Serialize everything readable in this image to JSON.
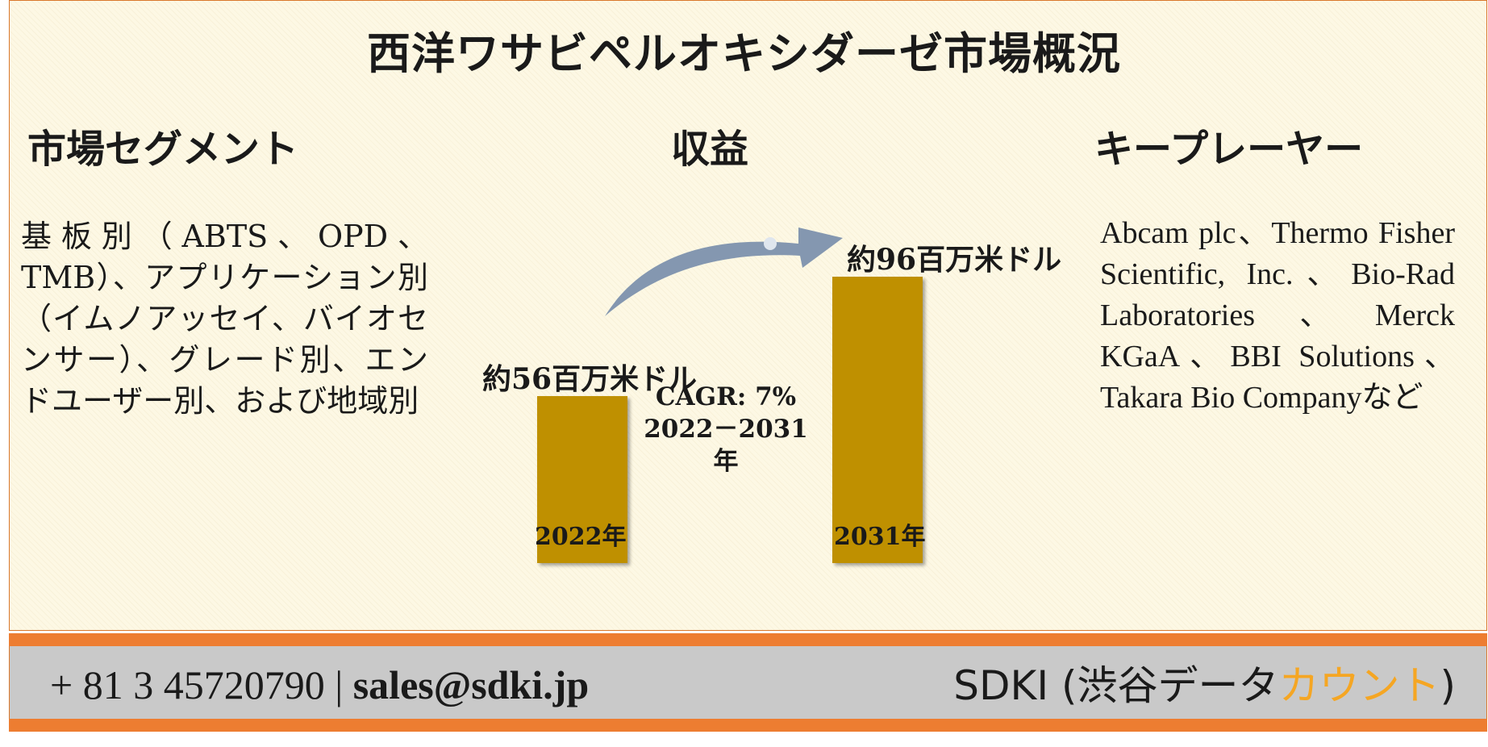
{
  "title": "西洋ワサビペルオキシダーゼ市場概況",
  "segment": {
    "heading": "市場セグメント",
    "text": "基板別（ABTS、OPD、TMB）、アプリケーション別（イムノアッセイ、バイオセンサー）、グレード別、エンドユーザー別、および地域別"
  },
  "revenue": {
    "heading": "収益"
  },
  "key_players": {
    "heading": "キープレーヤー",
    "text": "Abcam plc、Thermo Fisher Scientific, Inc.、Bio-Rad Laboratories、Merck KGaA、BBI Solutions、Takara Bio Companyなど"
  },
  "chart_data": {
    "type": "bar",
    "categories": [
      "2022年",
      "2031年"
    ],
    "values": [
      56,
      96
    ],
    "value_labels": [
      "約56百万米ドル",
      "約96百万米ドル"
    ],
    "unit": "百万米ドル",
    "cagr_line1": "CAGR: 7%",
    "cagr_line2": "2022－2031年",
    "bar_color": "#bf9000",
    "arrow_color": "#8497b0"
  },
  "footer": {
    "phone": "+ 81 3 45720790",
    "separator": "|",
    "email": "sales@sdki.jp",
    "brand_prefix": "SDKI (渋谷データ",
    "brand_accent": "カウント",
    "brand_suffix": ")",
    "accent_color": "#f5a623"
  }
}
